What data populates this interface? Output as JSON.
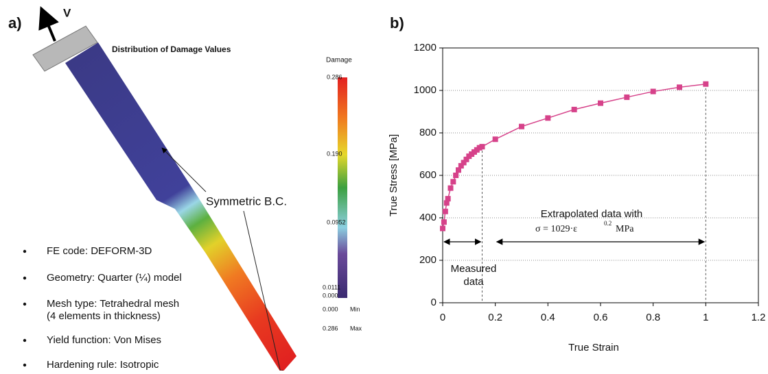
{
  "panel_a": {
    "label": "a)",
    "arrow_label": "V",
    "title": "Distribution of Damage Values",
    "annotation": "Symmetric B.C.",
    "colorbar": {
      "title": "Damage",
      "labels": [
        "0.286",
        "0.190",
        "0.0952",
        "0.0111",
        "0.000"
      ],
      "min_label": "0.000",
      "min_text": "Min",
      "max_label": "0.286",
      "max_text": "Max"
    },
    "bullets": [
      [
        "FE code: DEFORM-3D"
      ],
      [
        "Geometry: Quarter (¼) model"
      ],
      [
        "Mesh type: Tetrahedral mesh",
        "(4 elements in thickness)"
      ],
      [
        "Yield function: Von Mises"
      ],
      [
        "Hardening rule: Isotropic"
      ]
    ]
  },
  "chart_data": {
    "type": "line",
    "panel_label": "b)",
    "xlabel": "True Strain",
    "ylabel": "True Stress [MPa]",
    "x": [
      0,
      0.005,
      0.01,
      0.015,
      0.02,
      0.03,
      0.04,
      0.05,
      0.06,
      0.07,
      0.08,
      0.09,
      0.1,
      0.11,
      0.12,
      0.13,
      0.14,
      0.15,
      0.2,
      0.3,
      0.4,
      0.5,
      0.6,
      0.7,
      0.8,
      0.9,
      1.0
    ],
    "series": [
      {
        "color": "#d6428a",
        "marker": "square",
        "values": [
          350,
          380,
          430,
          470,
          490,
          540,
          570,
          600,
          625,
          645,
          660,
          675,
          690,
          700,
          710,
          720,
          730,
          735,
          770,
          830,
          870,
          910,
          940,
          968,
          995,
          1015,
          1030
        ]
      }
    ],
    "xlim": [
      0,
      1.2
    ],
    "xticks": [
      0,
      0.2,
      0.4,
      0.6,
      0.8,
      1,
      1.2
    ],
    "ylim": [
      0,
      1200
    ],
    "yticks": [
      0,
      200,
      400,
      600,
      800,
      1000,
      1200
    ],
    "grid": true,
    "annotations": {
      "measured": [
        "Measured",
        "data"
      ],
      "extrapolated": "Extrapolated data with",
      "formula": "σ = 1029·ε",
      "exponent": "0.2",
      "unit": "MPa"
    }
  }
}
